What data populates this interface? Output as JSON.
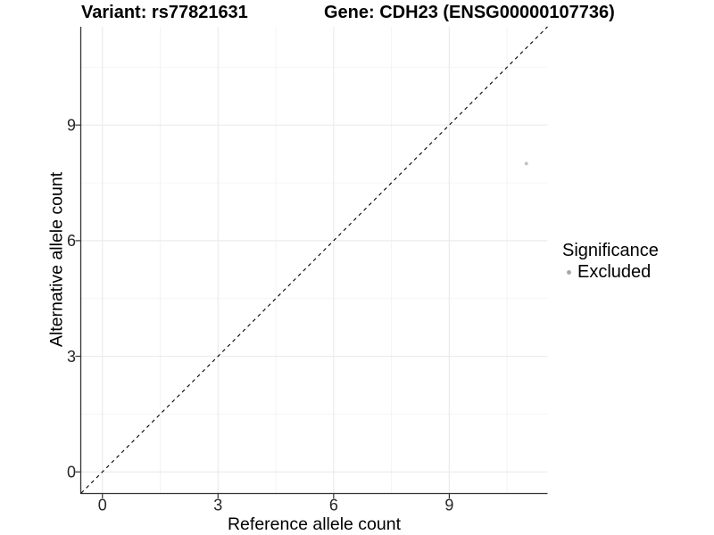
{
  "figure": {
    "title_left": "Variant: rs77821631",
    "title_right": "Gene: CDH23 (ENSG00000107736)"
  },
  "chart_data": {
    "type": "scatter",
    "title": "Variant: rs77821631 | Gene: CDH23 (ENSG00000107736)",
    "xlabel": "Reference allele count",
    "ylabel": "Alternative allele count",
    "xlim": [
      -0.55,
      11.55
    ],
    "ylim": [
      -0.55,
      11.55
    ],
    "x_major_ticks": [
      0,
      3,
      6,
      9
    ],
    "y_major_ticks": [
      0,
      3,
      6,
      9
    ],
    "x_minor_gridlines": [
      1.5,
      4.5,
      7.5,
      10.5
    ],
    "y_minor_gridlines": [
      1.5,
      4.5,
      7.5,
      10.5
    ],
    "grid": true,
    "series": [
      {
        "name": "Excluded",
        "color": "#c0c0c0",
        "points": [
          {
            "x": 11,
            "y": 8
          }
        ]
      }
    ],
    "reference_line": {
      "slope": 1,
      "intercept": 0,
      "style": "dashed",
      "color": "#000000"
    },
    "legend": {
      "title": "Significance",
      "position": "right",
      "items": [
        {
          "label": "Excluded",
          "marker_color": "#a8a8a8"
        }
      ]
    },
    "colors": {
      "background": "#ffffff",
      "grid_major": "#ebebeb",
      "grid_minor": "#f4f4f4",
      "axis_line": "#333333",
      "tick_label": "#262626"
    }
  }
}
